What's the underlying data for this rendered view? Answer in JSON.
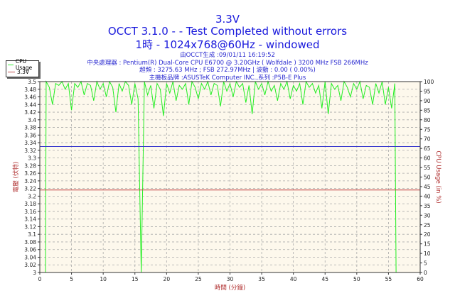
{
  "titles": [
    "3.3V",
    "OCCT 3.1.0 -  - Test Completed without errors",
    "1時 - 1024x768@60Hz - windowed"
  ],
  "info": [
    "由OCCT生成 :09/01/11 16:19:52",
    "中央處理器 : Pentium(R) Dual-Core CPU E6700 @ 3.20GHz ( Wolfdale ) 3200 MHz FSB 266MHz",
    "超頻 : 3275.63 MHz ; FSB 272.97MHz | 波動 : 0.00 ( 0.00%)",
    "主機板品牌 :ASUSTeK Computer INC.,系列 :P5B-E Plus"
  ],
  "legend": [
    {
      "label": "CPU Usage",
      "color": "#33ee33"
    },
    {
      "label": "3.3V",
      "color": "#c05050"
    }
  ],
  "chart_data": {
    "type": "line",
    "title": "3.3V",
    "xlabel": "時間 (分鐘)",
    "ylabel": "電壓 (伏特)",
    "y2label": "CPU Usage (in %)",
    "xlim": [
      0,
      60
    ],
    "ylim": [
      3.0,
      3.5
    ],
    "y2lim": [
      0,
      100
    ],
    "x_ticks": [
      0,
      5,
      10,
      15,
      20,
      25,
      30,
      35,
      40,
      45,
      50,
      55,
      60
    ],
    "y_ticks": [
      "3",
      "3.02",
      "3.04",
      "3.06",
      "3.08",
      "3.1",
      "3.12",
      "3.14",
      "3.16",
      "3.18",
      "3.2",
      "3.22",
      "3.24",
      "3.26",
      "3.28",
      "3.3",
      "3.32",
      "3.34",
      "3.36",
      "3.38",
      "3.4",
      "3.42",
      "3.44",
      "3.46",
      "3.48",
      "3.5"
    ],
    "y2_ticks": [
      "0",
      "5",
      "10",
      "15",
      "20",
      "25",
      "30",
      "35",
      "40",
      "45",
      "50",
      "55",
      "60",
      "65",
      "70",
      "75",
      "80",
      "85",
      "90",
      "95",
      "100"
    ],
    "grid": true,
    "background": "#fdf8ec",
    "legend_position": "top-left",
    "series": [
      {
        "name": "CPU Usage",
        "axis": "right",
        "color": "#22ee22",
        "x": [
          0.9,
          1,
          1.5,
          2,
          2.5,
          3,
          3.5,
          4,
          4.5,
          5,
          5.5,
          6,
          6.5,
          7,
          7.5,
          8,
          8.5,
          9,
          9.5,
          10,
          10.5,
          11,
          11.5,
          12,
          12.5,
          13,
          13.5,
          14,
          14.5,
          15,
          15.5,
          16,
          16.5,
          17,
          17.5,
          18,
          18.5,
          19,
          19.5,
          20,
          20.5,
          21,
          21.5,
          22,
          22.5,
          23,
          23.5,
          24,
          24.5,
          25,
          25.5,
          26,
          26.5,
          27,
          27.5,
          28,
          28.5,
          29,
          29.5,
          30,
          30.5,
          31,
          31.5,
          32,
          32.5,
          33,
          33.5,
          34,
          34.5,
          35,
          35.5,
          36,
          36.5,
          37,
          37.5,
          38,
          38.5,
          39,
          39.5,
          40,
          40.5,
          41,
          41.5,
          42,
          42.5,
          43,
          43.5,
          44,
          44.5,
          45,
          45.5,
          46,
          46.5,
          47,
          47.5,
          48,
          48.5,
          49,
          49.5,
          50,
          50.5,
          51,
          51.5,
          52,
          52.5,
          53,
          53.5,
          54,
          54.5,
          55,
          55.5,
          56,
          56.2
        ],
        "values": [
          0,
          100,
          97,
          88,
          99,
          98,
          100,
          96,
          99,
          85,
          99,
          97,
          100,
          93,
          99,
          98,
          90,
          100,
          96,
          99,
          92,
          100,
          97,
          84,
          99,
          95,
          100,
          98,
          88,
          99,
          91,
          0,
          100,
          93,
          98,
          86,
          99,
          96,
          82,
          99,
          94,
          100,
          90,
          98,
          96,
          99,
          88,
          100,
          97,
          91,
          99,
          96,
          100,
          93,
          99,
          98,
          87,
          100,
          95,
          99,
          92,
          100,
          97,
          99,
          89,
          98,
          83,
          100,
          96,
          99,
          93,
          100,
          95,
          98,
          90,
          99,
          96,
          100,
          91,
          98,
          95,
          99,
          88,
          100,
          97,
          99,
          94,
          98,
          86,
          100,
          83,
          99,
          96,
          98,
          90,
          100,
          97,
          92,
          99,
          96,
          100,
          91,
          98,
          97,
          88,
          99,
          94,
          100,
          88,
          97,
          86,
          99,
          0
        ]
      },
      {
        "name": "3.3V",
        "axis": "left",
        "color": "#c04040",
        "x": [
          0,
          60
        ],
        "values": [
          3.216,
          3.216
        ]
      },
      {
        "axis": "left",
        "color": "#3333cc",
        "x": [
          0,
          60
        ],
        "values": [
          3.33,
          3.33
        ]
      }
    ]
  }
}
